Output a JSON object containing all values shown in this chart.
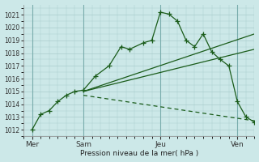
{
  "background_color": "#cce8e8",
  "grid_color": "#aacccc",
  "line_color": "#1a5c1a",
  "title": "Pression niveau de la mer( hPa )",
  "xlim": [
    0,
    13.5
  ],
  "ylim": [
    1011.5,
    1021.8
  ],
  "yticks": [
    1012,
    1013,
    1014,
    1015,
    1016,
    1017,
    1018,
    1019,
    1020,
    1021
  ],
  "xtick_positions": [
    0.5,
    3.5,
    8.0,
    12.5
  ],
  "xtick_labels": [
    "Mer",
    "Sam",
    "Jeu",
    "Ven"
  ],
  "vlines": [
    0.5,
    3.5,
    8.0,
    12.5
  ],
  "main_line": {
    "x": [
      0.5,
      1.0,
      1.5,
      2.0,
      2.5,
      3.0,
      3.5,
      4.2,
      5.0,
      5.7,
      6.2,
      7.0,
      7.5,
      8.0,
      8.5,
      9.0,
      9.5,
      10.0,
      10.5,
      11.0,
      11.5,
      12.0,
      12.5,
      13.0,
      13.5
    ],
    "y": [
      1012.0,
      1013.2,
      1013.5,
      1014.2,
      1014.7,
      1015.0,
      1015.1,
      1016.2,
      1017.0,
      1018.5,
      1018.3,
      1018.8,
      1019.0,
      1021.2,
      1021.05,
      1020.5,
      1019.0,
      1018.5,
      1019.5,
      1018.1,
      1017.5,
      1017.0,
      1014.2,
      1013.0,
      1012.6
    ]
  },
  "fan_lines": [
    {
      "x": [
        3.5,
        13.5
      ],
      "y": [
        1015.0,
        1019.5
      ],
      "dash": false
    },
    {
      "x": [
        3.5,
        13.5
      ],
      "y": [
        1015.0,
        1018.3
      ],
      "dash": false
    },
    {
      "x": [
        3.5,
        13.5
      ],
      "y": [
        1014.7,
        1012.7
      ],
      "dash": true
    }
  ]
}
